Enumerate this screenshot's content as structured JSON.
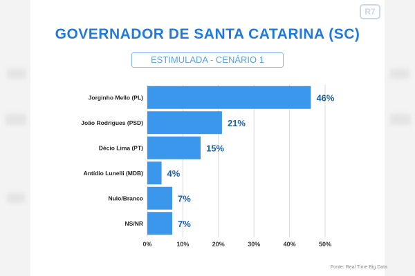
{
  "brand": {
    "logo_text": "R7"
  },
  "header": {
    "title": "GOVERNADOR DE SANTA CATARINA (SC)",
    "subtitle": "ESTIMULADA - CENÁRIO 1"
  },
  "footer": {
    "source": "Fonte: Real Time Big Data"
  },
  "colors": {
    "bar": "#3a97ec",
    "title": "#1f7ae0",
    "value_label": "#1e5fa8",
    "grid": "#d9d9d9"
  },
  "chart_data": {
    "type": "bar",
    "orientation": "horizontal",
    "categories": [
      "Jorginho Mello (PL)",
      "João Rodrigues (PSD)",
      "Décio Lima (PT)",
      "Antídio Lunelli (MDB)",
      "Nulo/Branco",
      "NS/NR"
    ],
    "values": [
      46,
      21,
      15,
      4,
      7,
      7
    ],
    "value_labels": [
      "46%",
      "21%",
      "15%",
      "4%",
      "7%",
      "7%"
    ],
    "x_ticks": [
      0,
      10,
      20,
      30,
      40,
      50
    ],
    "x_tick_labels": [
      "0%",
      "10%",
      "20%",
      "30%",
      "40%",
      "50%"
    ],
    "xlim": [
      0,
      50
    ],
    "grid": true,
    "title": "GOVERNADOR DE SANTA CATARINA (SC)",
    "subtitle": "ESTIMULADA - CENÁRIO 1"
  }
}
